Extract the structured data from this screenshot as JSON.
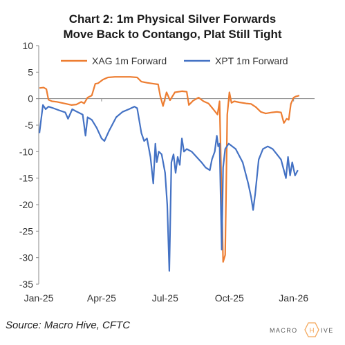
{
  "header": {
    "title_line1": "Chart 2: 1m Physical Silver Forwards",
    "title_line2": "Move Back to Contango, Plat Still Tight"
  },
  "footer": {
    "source": "Source: Macro Hive, CFTC",
    "logo_text_left": "MACRO",
    "logo_text_right": "IVE",
    "logo_hex_letter": "H"
  },
  "colors": {
    "xag": "#ED7D31",
    "xpt": "#4472C4",
    "axis": "#888888",
    "text": "#333333",
    "logo_accent": "#F4A75A"
  },
  "chart_data": {
    "type": "line",
    "title": "Chart 2: 1m Physical Silver Forwards Move Back to Contango, Plat Still Tight",
    "xlabel": "",
    "ylabel": "",
    "ylim": [
      -35,
      10
    ],
    "yticks": [
      10,
      5,
      0,
      -5,
      -10,
      -15,
      -20,
      -25,
      -30,
      -35
    ],
    "xlim": [
      "2025-01-01",
      "2026-01-31"
    ],
    "xtick_labels": [
      "Jan-25",
      "Apr-25",
      "Jul-25",
      "Oct-25",
      "Jan-26"
    ],
    "xtick_dates": [
      "2025-01-01",
      "2025-04-01",
      "2025-07-01",
      "2025-10-01",
      "2026-01-01"
    ],
    "legend_position": "top",
    "grid": false,
    "series": [
      {
        "name": "XAG 1m Forward",
        "color": "#ED7D31",
        "points": [
          [
            "2025-01-02",
            2.0
          ],
          [
            "2025-01-08",
            2.1
          ],
          [
            "2025-01-12",
            1.8
          ],
          [
            "2025-01-15",
            -0.2
          ],
          [
            "2025-01-20",
            -0.5
          ],
          [
            "2025-01-27",
            -0.6
          ],
          [
            "2025-02-03",
            -0.8
          ],
          [
            "2025-02-10",
            -1.0
          ],
          [
            "2025-02-17",
            -1.2
          ],
          [
            "2025-02-24",
            -1.1
          ],
          [
            "2025-03-03",
            -0.6
          ],
          [
            "2025-03-07",
            -0.9
          ],
          [
            "2025-03-12",
            0.2
          ],
          [
            "2025-03-18",
            0.6
          ],
          [
            "2025-03-23",
            2.8
          ],
          [
            "2025-03-27",
            2.9
          ],
          [
            "2025-04-03",
            3.6
          ],
          [
            "2025-04-10",
            4.0
          ],
          [
            "2025-04-20",
            4.1
          ],
          [
            "2025-05-01",
            4.1
          ],
          [
            "2025-05-12",
            4.1
          ],
          [
            "2025-05-22",
            4.0
          ],
          [
            "2025-05-28",
            3.2
          ],
          [
            "2025-06-05",
            3.0
          ],
          [
            "2025-06-15",
            2.8
          ],
          [
            "2025-06-21",
            2.7
          ],
          [
            "2025-06-24",
            0.5
          ],
          [
            "2025-06-28",
            -1.4
          ],
          [
            "2025-07-03",
            1.2
          ],
          [
            "2025-07-08",
            -0.3
          ],
          [
            "2025-07-15",
            1.2
          ],
          [
            "2025-07-25",
            1.4
          ],
          [
            "2025-08-01",
            1.3
          ],
          [
            "2025-08-04",
            -1.2
          ],
          [
            "2025-08-10",
            -0.4
          ],
          [
            "2025-08-18",
            0.2
          ],
          [
            "2025-08-25",
            -0.5
          ],
          [
            "2025-09-01",
            -0.9
          ],
          [
            "2025-09-08",
            -2.0
          ],
          [
            "2025-09-14",
            -3.0
          ],
          [
            "2025-09-17",
            -0.5
          ],
          [
            "2025-09-22",
            -30.8
          ],
          [
            "2025-09-25",
            -29.5
          ],
          [
            "2025-09-28",
            -3.0
          ],
          [
            "2025-10-01",
            1.2
          ],
          [
            "2025-10-04",
            -0.8
          ],
          [
            "2025-10-08",
            -0.5
          ],
          [
            "2025-10-15",
            -0.7
          ],
          [
            "2025-10-25",
            -0.9
          ],
          [
            "2025-11-01",
            -1.0
          ],
          [
            "2025-11-08",
            -1.6
          ],
          [
            "2025-11-15",
            -2.5
          ],
          [
            "2025-11-22",
            -2.8
          ],
          [
            "2025-12-01",
            -2.6
          ],
          [
            "2025-12-08",
            -2.5
          ],
          [
            "2025-12-14",
            -2.6
          ],
          [
            "2025-12-18",
            -4.6
          ],
          [
            "2025-12-22",
            -3.8
          ],
          [
            "2025-12-25",
            -4.0
          ],
          [
            "2025-12-28",
            -1.0
          ],
          [
            "2026-01-01",
            0.2
          ],
          [
            "2026-01-04",
            0.4
          ],
          [
            "2026-01-07",
            0.5
          ],
          [
            "2026-01-09",
            0.6
          ]
        ]
      },
      {
        "name": "XPT 1m Forward",
        "color": "#4472C4",
        "points": [
          [
            "2025-01-02",
            -6.5
          ],
          [
            "2025-01-07",
            -1.2
          ],
          [
            "2025-01-11",
            -2.0
          ],
          [
            "2025-01-15",
            -1.5
          ],
          [
            "2025-01-22",
            -1.8
          ],
          [
            "2025-01-30",
            -2.2
          ],
          [
            "2025-02-08",
            -2.6
          ],
          [
            "2025-02-12",
            -3.8
          ],
          [
            "2025-02-18",
            -2.0
          ],
          [
            "2025-02-25",
            -2.5
          ],
          [
            "2025-03-05",
            -3.0
          ],
          [
            "2025-03-09",
            -7.0
          ],
          [
            "2025-03-12",
            -3.5
          ],
          [
            "2025-03-18",
            -4.0
          ],
          [
            "2025-03-25",
            -5.5
          ],
          [
            "2025-04-01",
            -7.5
          ],
          [
            "2025-04-05",
            -8.0
          ],
          [
            "2025-04-12",
            -6.0
          ],
          [
            "2025-04-22",
            -3.5
          ],
          [
            "2025-05-01",
            -2.5
          ],
          [
            "2025-05-10",
            -2.0
          ],
          [
            "2025-05-18",
            -1.5
          ],
          [
            "2025-05-22",
            -1.8
          ],
          [
            "2025-05-28",
            -6.5
          ],
          [
            "2025-06-01",
            -8.0
          ],
          [
            "2025-06-05",
            -7.5
          ],
          [
            "2025-06-10",
            -11.0
          ],
          [
            "2025-06-14",
            -16.0
          ],
          [
            "2025-06-17",
            -8.5
          ],
          [
            "2025-06-19",
            -12.0
          ],
          [
            "2025-06-22",
            -10.0
          ],
          [
            "2025-06-26",
            -10.5
          ],
          [
            "2025-07-01",
            -14.0
          ],
          [
            "2025-07-04",
            -20.0
          ],
          [
            "2025-07-07",
            -32.5
          ],
          [
            "2025-07-10",
            -12.0
          ],
          [
            "2025-07-13",
            -10.5
          ],
          [
            "2025-07-16",
            -14.0
          ],
          [
            "2025-07-19",
            -11.0
          ],
          [
            "2025-07-22",
            -12.5
          ],
          [
            "2025-07-25",
            -7.5
          ],
          [
            "2025-07-28",
            -10.0
          ],
          [
            "2025-08-01",
            -9.5
          ],
          [
            "2025-08-08",
            -10.0
          ],
          [
            "2025-08-15",
            -11.0
          ],
          [
            "2025-08-22",
            -12.0
          ],
          [
            "2025-08-28",
            -13.0
          ],
          [
            "2025-09-03",
            -13.5
          ],
          [
            "2025-09-06",
            -11.5
          ],
          [
            "2025-09-10",
            -10.0
          ],
          [
            "2025-09-13",
            -7.0
          ],
          [
            "2025-09-15",
            -9.0
          ],
          [
            "2025-09-17",
            -8.5
          ],
          [
            "2025-09-20",
            -28.5
          ],
          [
            "2025-09-22",
            -13.0
          ],
          [
            "2025-09-25",
            -9.5
          ],
          [
            "2025-09-30",
            -8.5
          ],
          [
            "2025-10-10",
            -9.5
          ],
          [
            "2025-10-20",
            -12.0
          ],
          [
            "2025-10-28",
            -16.0
          ],
          [
            "2025-11-01",
            -18.5
          ],
          [
            "2025-11-04",
            -21.0
          ],
          [
            "2025-11-07",
            -18.0
          ],
          [
            "2025-11-12",
            -11.5
          ],
          [
            "2025-11-18",
            -9.5
          ],
          [
            "2025-11-25",
            -9.0
          ],
          [
            "2025-12-02",
            -9.5
          ],
          [
            "2025-12-08",
            -10.5
          ],
          [
            "2025-12-14",
            -11.5
          ],
          [
            "2025-12-18",
            -13.5
          ],
          [
            "2025-12-21",
            -15.0
          ],
          [
            "2025-12-24",
            -11.0
          ],
          [
            "2025-12-27",
            -14.5
          ],
          [
            "2025-12-30",
            -12.0
          ],
          [
            "2026-01-03",
            -14.5
          ],
          [
            "2026-01-07",
            -13.5
          ]
        ]
      }
    ]
  }
}
